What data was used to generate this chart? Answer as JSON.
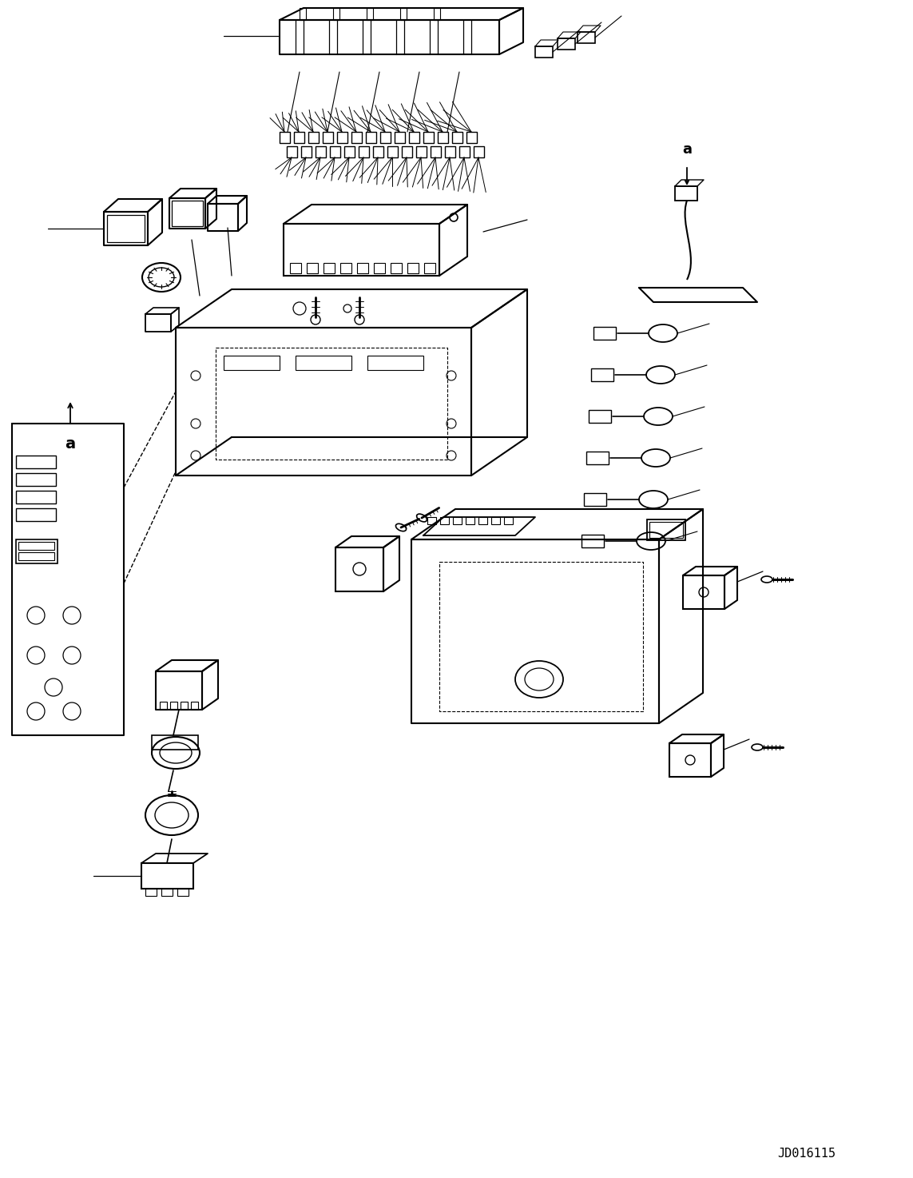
{
  "background_color": "#ffffff",
  "line_color": "#000000",
  "figure_width": 11.43,
  "figure_height": 14.74,
  "dpi": 100,
  "watermark_text": "JD016115",
  "watermark_fontsize": 11
}
